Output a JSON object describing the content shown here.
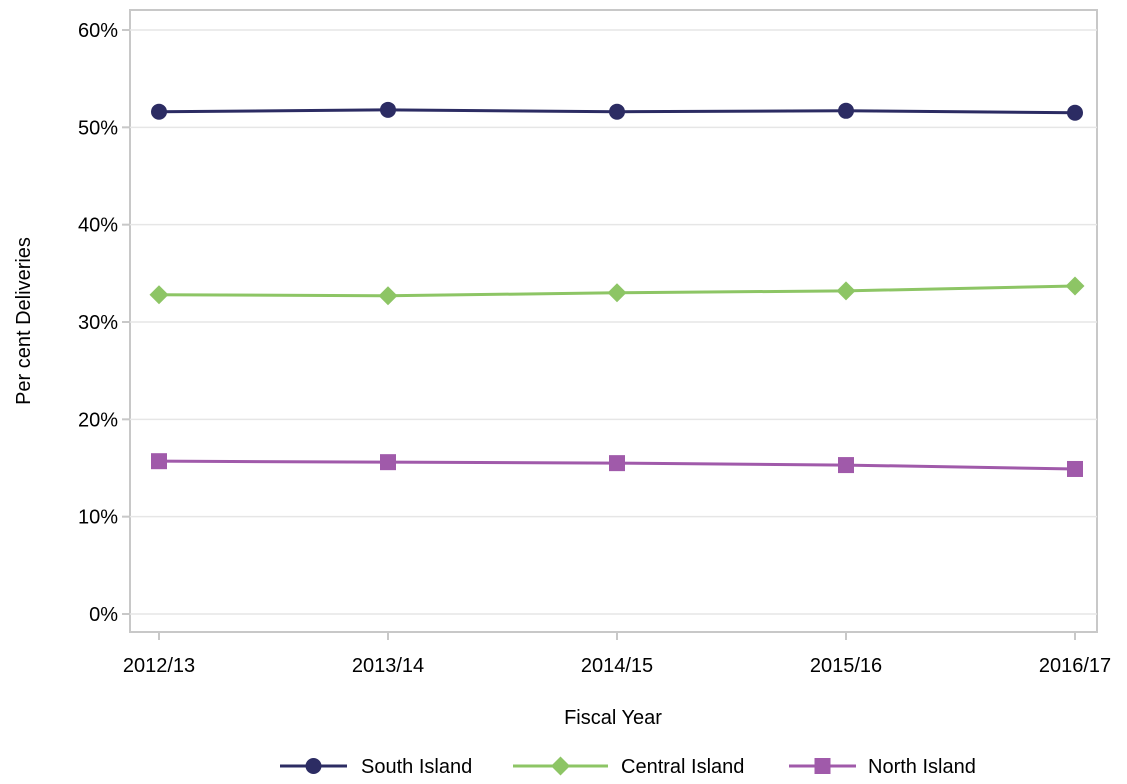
{
  "chart_data": {
    "type": "line",
    "xlabel": "Fiscal Year",
    "ylabel": "Per cent Deliveries",
    "categories": [
      "2012/13",
      "2013/14",
      "2014/15",
      "2015/16",
      "2016/17"
    ],
    "ylim": [
      0,
      60
    ],
    "yticks": [
      "0%",
      "10%",
      "20%",
      "30%",
      "40%",
      "50%",
      "60%"
    ],
    "grid": "horizontal",
    "legend_position": "bottom",
    "series": [
      {
        "name": "South Island",
        "color": "#2c2c63",
        "marker": "circle",
        "values": [
          51.6,
          51.8,
          51.6,
          51.7,
          51.5
        ]
      },
      {
        "name": "Central Island",
        "color": "#8dc565",
        "marker": "diamond",
        "values": [
          32.8,
          32.7,
          33.0,
          33.2,
          33.7
        ]
      },
      {
        "name": "North Island",
        "color": "#a05aaa",
        "marker": "square",
        "values": [
          15.7,
          15.6,
          15.5,
          15.3,
          14.9
        ]
      }
    ]
  }
}
